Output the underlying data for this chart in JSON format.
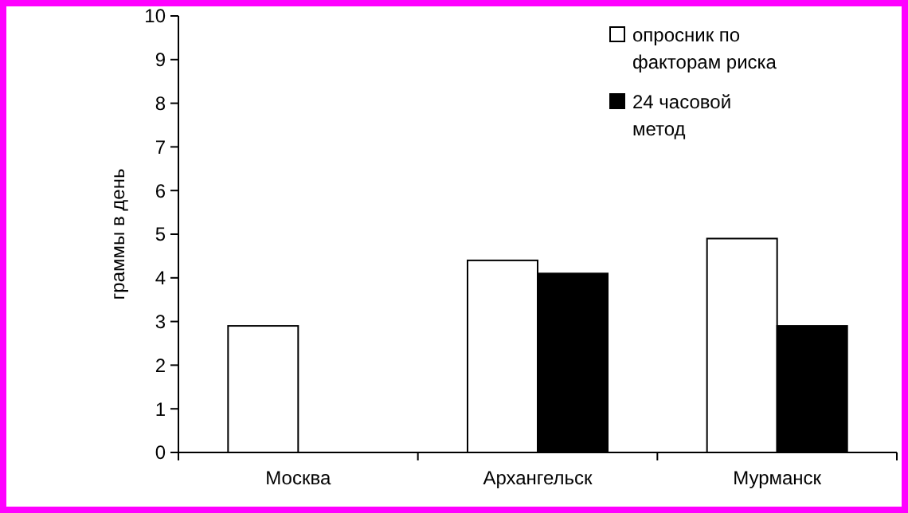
{
  "chart_data": {
    "type": "bar",
    "ylabel": "граммы в день",
    "categories": [
      "Москва",
      "Архангельск",
      "Мурманск"
    ],
    "series": [
      {
        "name": "опросник по факторам риска",
        "color": "#ffffff",
        "values": [
          2.9,
          4.4,
          4.9
        ]
      },
      {
        "name": "24 часовой метод",
        "color": "#000000",
        "values": [
          null,
          4.1,
          2.9
        ]
      }
    ],
    "ylim": [
      0,
      10
    ],
    "yticks": [
      0,
      1,
      2,
      3,
      4,
      5,
      6,
      7,
      8,
      9,
      10
    ],
    "grid": false,
    "legend": "top right"
  }
}
